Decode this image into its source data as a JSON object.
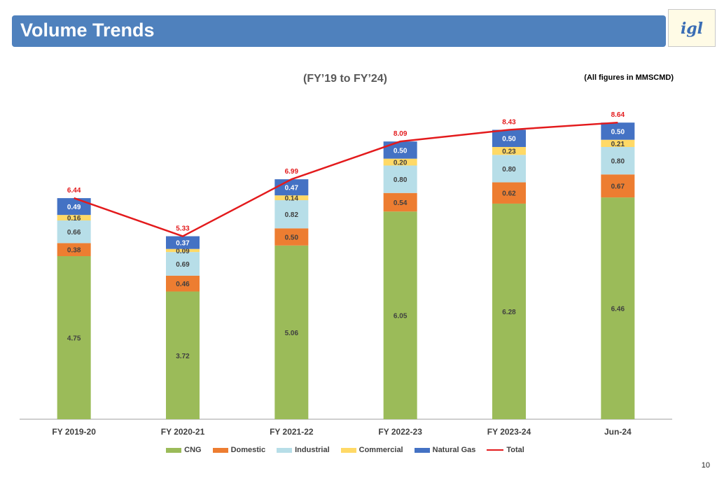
{
  "header": {
    "title": "Volume Trends",
    "logo_text": "igl"
  },
  "chart_title": "(FY’19 to FY’24)",
  "unit_note": "(All figures in MMSCMD)",
  "page_number": "10",
  "colors": {
    "CNG": "#9bbb59",
    "Domestic": "#ed7d31",
    "Industrial": "#b7dee8",
    "Commercial": "#ffd966",
    "Natural Gas": "#4472c4",
    "Total": "#e31a1c"
  },
  "chart_data": {
    "type": "bar",
    "stacked": true,
    "categories": [
      "FY 2019-20",
      "FY 2020-21",
      "FY 2021-22",
      "FY 2022-23",
      "FY 2023-24",
      "Jun-24"
    ],
    "series": [
      {
        "name": "CNG",
        "values": [
          4.75,
          3.72,
          5.06,
          6.05,
          6.28,
          6.46
        ]
      },
      {
        "name": "Domestic",
        "values": [
          0.38,
          0.46,
          0.5,
          0.54,
          0.62,
          0.67
        ]
      },
      {
        "name": "Industrial",
        "values": [
          0.66,
          0.69,
          0.82,
          0.8,
          0.8,
          0.8
        ]
      },
      {
        "name": "Commercial",
        "values": [
          0.16,
          0.09,
          0.14,
          0.2,
          0.23,
          0.21
        ]
      },
      {
        "name": "Natural Gas",
        "values": [
          0.49,
          0.37,
          0.47,
          0.5,
          0.5,
          0.5
        ]
      }
    ],
    "line_series": {
      "name": "Total",
      "values": [
        6.44,
        5.33,
        6.99,
        8.09,
        8.43,
        8.64
      ]
    },
    "ylim": [
      0,
      9.5
    ],
    "legend_position": "bottom"
  }
}
